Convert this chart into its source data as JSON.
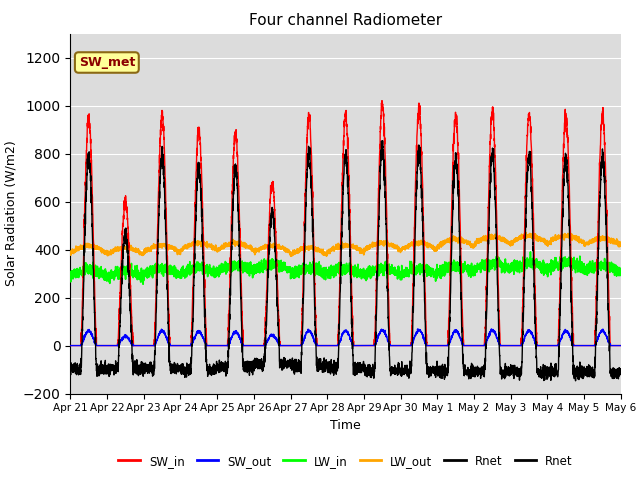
{
  "title": "Four channel Radiometer",
  "xlabel": "Time",
  "ylabel": "Solar Radiation (W/m2)",
  "ylim": [
    -200,
    1300
  ],
  "yticks": [
    -200,
    0,
    200,
    400,
    600,
    800,
    1000,
    1200
  ],
  "x_tick_labels": [
    "Apr 21",
    "Apr 22",
    "Apr 23",
    "Apr 24",
    "Apr 25",
    "Apr 26",
    "Apr 27",
    "Apr 28",
    "Apr 29",
    "Apr 30",
    "May 1",
    "May 2",
    "May 3",
    "May 4",
    "May 5",
    "May 6"
  ],
  "annotation_text": "SW_met",
  "annotation_color": "#8B0000",
  "annotation_bg": "#FFFF99",
  "annotation_edge": "#8B6914",
  "bg_color": "#DCDCDC",
  "legend_entries": [
    "SW_in",
    "SW_out",
    "LW_in",
    "LW_out",
    "Rnet",
    "Rnet"
  ],
  "legend_colors": [
    "red",
    "blue",
    "lime",
    "orange",
    "black",
    "black"
  ],
  "colors": {
    "SW_in": "red",
    "SW_out": "blue",
    "LW_in": "lime",
    "LW_out": "orange",
    "Rnet": "black"
  },
  "n_days": 15,
  "pts_per_day": 288,
  "peak_vals": [
    950,
    600,
    950,
    900,
    880,
    680,
    960,
    960,
    1000,
    980,
    960,
    970,
    960,
    950,
    960
  ],
  "lw_in_base": [
    290,
    285,
    295,
    300,
    310,
    315,
    295,
    295,
    295,
    295,
    305,
    315,
    318,
    320,
    308
  ],
  "lw_out_base": [
    385,
    378,
    388,
    398,
    398,
    388,
    378,
    388,
    398,
    398,
    413,
    423,
    428,
    428,
    418
  ]
}
